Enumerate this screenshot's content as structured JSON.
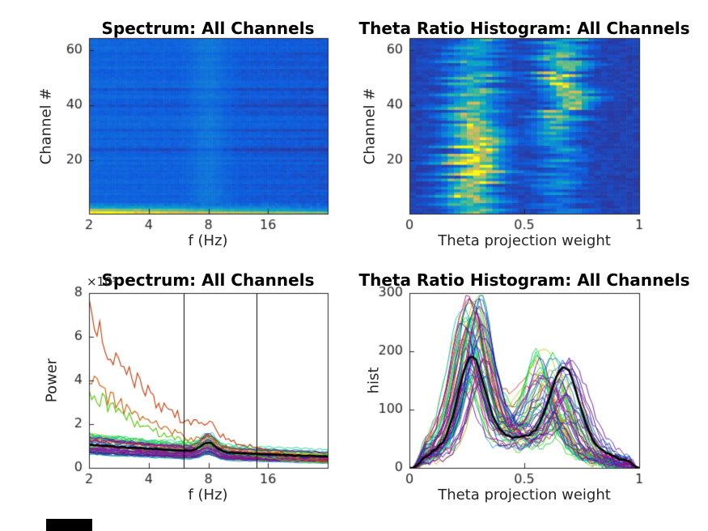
{
  "figure": {
    "background": "#ffffff",
    "text_color": "#262626",
    "title_color": "#000000"
  },
  "chart_data": [
    {
      "id": "spectrum-heatmap-all-channels",
      "type": "heatmap",
      "title": "Spectrum: All Channels",
      "xlabel": "f (Hz)",
      "ylabel": "Channel #",
      "xscale": "log2",
      "xlim": [
        2,
        32
      ],
      "xticks": [
        2,
        4,
        8,
        16
      ],
      "ylim": [
        0.5,
        64.5
      ],
      "yticks": [
        20,
        40,
        60
      ],
      "n_channels": 64,
      "n_freq_bins": 64,
      "colormap": "parula",
      "features": {
        "background_level": 0.11,
        "low_freq_gain": 0.05,
        "theta_peak_hz": 8,
        "theta_peak_gain": 0.09,
        "bright_channels": [
          {
            "channel": 1,
            "start": 1.0,
            "slope": -0.35
          },
          {
            "channel": 2,
            "start": 0.78,
            "slope": -0.5
          },
          {
            "channel": 3,
            "start": 0.42,
            "slope": -0.22
          },
          {
            "channel": 4,
            "start": 0.27,
            "slope": -0.12
          }
        ],
        "dark_channels": [
          24,
          31,
          40,
          46
        ],
        "noise": 0.035,
        "seed": 7
      }
    },
    {
      "id": "theta-ratio-heatmap-all-channels",
      "type": "heatmap",
      "title": "Theta Ratio Histogram: All Channels",
      "xlabel": "Theta projection weight",
      "ylabel": "Channel #",
      "xscale": "linear",
      "xlim": [
        0,
        1
      ],
      "xticks": [
        0,
        0.5,
        1
      ],
      "ylim": [
        0.5,
        64.5
      ],
      "yticks": [
        20,
        40,
        60
      ],
      "n_channels": 64,
      "n_bins": 36,
      "colormap": "parula",
      "features": {
        "background_level": 0.06,
        "mode1": {
          "center": 0.28,
          "center_jitter": 0.05,
          "width_range": [
            0.045,
            0.085
          ],
          "amp_base": 0.35,
          "amp_gain": 0.55,
          "amp_peak_channel": 20,
          "amp_spread": 15
        },
        "mode2": {
          "center": 0.66,
          "center_jitter": 0.06,
          "width_range": [
            0.04,
            0.075
          ],
          "amp_base": 0.2,
          "amp_gain": 0.6,
          "amp_peak_channel": 47,
          "amp_spread": 11
        },
        "noise": 0.05,
        "seed": 11
      }
    },
    {
      "id": "spectrum-lines-all-channels",
      "type": "line",
      "title": "Spectrum: All Channels",
      "xlabel": "f (Hz)",
      "ylabel": "Power",
      "y_exponent_label": "×10⁵",
      "xscale": "log2",
      "xlim": [
        2,
        32
      ],
      "xticks": [
        2,
        4,
        8,
        16
      ],
      "ylim": [
        0,
        8
      ],
      "yticks": [
        0,
        2,
        4,
        6,
        8
      ],
      "vertical_lines_hz": [
        6,
        14
      ],
      "series": {
        "n_channels": 58,
        "base_range": [
          0.62,
          1.55
        ],
        "decay_exp_range": [
          0.2,
          0.42
        ],
        "theta_peak_hz": 8,
        "theta_peak_gain_range": [
          0.18,
          0.5
        ],
        "outliers": [
          {
            "start_power": 7.0,
            "decay_exp": 1.05,
            "hue": 16
          },
          {
            "start_power": 4.0,
            "decay_exp": 0.92,
            "hue": 28
          },
          {
            "start_power": 3.6,
            "decay_exp": 1.0,
            "hue": 95
          }
        ],
        "mean_line": {
          "base": 1.05,
          "decay_exp": 0.25,
          "theta_peak_gain": 0.4,
          "color": "#000000",
          "width": 2.5
        },
        "hue_range": [
          0,
          330
        ],
        "noise": 0.06,
        "seed": 21
      }
    },
    {
      "id": "theta-ratio-lines-all-channels",
      "type": "line",
      "title": "Theta Ratio Histogram: All Channels",
      "xlabel": "Theta projection weight",
      "ylabel": "hist",
      "xscale": "linear",
      "xlim": [
        0,
        1
      ],
      "xticks": [
        0,
        0.5,
        1
      ],
      "ylim": [
        0,
        300
      ],
      "yticks": [
        0,
        100,
        200,
        300
      ],
      "series": {
        "n_channels": 58,
        "peak1": {
          "center_range": [
            0.22,
            0.33
          ],
          "amp_range": [
            130,
            285
          ],
          "width_range": [
            0.04,
            0.07
          ]
        },
        "peak2": {
          "center_range": [
            0.55,
            0.72
          ],
          "amp_range": [
            60,
            185
          ],
          "width_range": [
            0.045,
            0.08
          ]
        },
        "tail_gain": 0.32,
        "mid_bump": {
          "center": 0.47,
          "amp": 14,
          "width": 0.18
        },
        "mean_line": {
          "peak1": {
            "center": 0.27,
            "amp": 182,
            "width": 0.055
          },
          "peak2": {
            "center": 0.675,
            "amp": 165,
            "width": 0.06
          },
          "color": "#000000",
          "width": 2.5
        },
        "hue_range": [
          0,
          330
        ],
        "noise": 7,
        "seed": 33
      }
    }
  ],
  "artifact": {
    "color": "#000000"
  }
}
